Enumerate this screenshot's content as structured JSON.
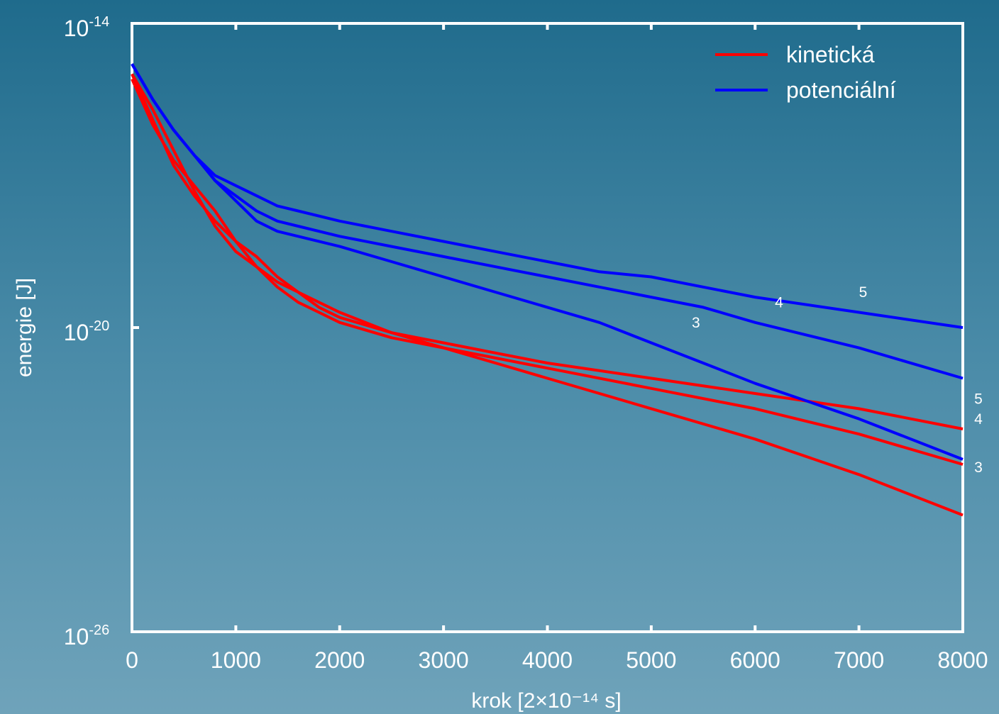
{
  "chart_data": {
    "type": "line",
    "title": "",
    "xlabel": "krok [2×10⁻¹⁴ s]",
    "ylabel": "energie [J]",
    "xlim": [
      0,
      8000
    ],
    "ylim_exp": [
      -26,
      -14
    ],
    "y_scale": "log",
    "x_ticks": [
      0,
      1000,
      2000,
      3000,
      4000,
      5000,
      6000,
      7000,
      8000
    ],
    "x_tick_labels": [
      "0",
      "1000",
      "2000",
      "3000",
      "4000",
      "5000",
      "6000",
      "7000",
      "8000"
    ],
    "y_ticks": [
      {
        "exp": -14,
        "label": "10",
        "sup": "-14"
      },
      {
        "exp": -20,
        "label": "10",
        "sup": "-20"
      },
      {
        "exp": -26,
        "label": "10",
        "sup": "-26"
      }
    ],
    "grid": false,
    "legend_position": "top-right",
    "legend": [
      {
        "name": "kinetická",
        "color": "#ff0000"
      },
      {
        "name": "potenciální",
        "color": "#0000ff"
      }
    ],
    "series": [
      {
        "name": "kinetická",
        "color": "#ff0000",
        "tag": "3",
        "x": [
          0,
          200,
          400,
          600,
          800,
          1000,
          1200,
          1400,
          1600,
          1800,
          2000,
          2500,
          3000,
          3500,
          4000,
          5000,
          6000,
          7000,
          8000
        ],
        "y_exp": [
          -15.0,
          -15.9,
          -16.8,
          -17.4,
          -17.9,
          -18.3,
          -18.6,
          -19.0,
          -19.3,
          -19.6,
          -19.8,
          -20.1,
          -20.4,
          -20.7,
          -21.0,
          -21.6,
          -22.2,
          -22.9,
          -23.7
        ]
      },
      {
        "name": "kinetická",
        "color": "#ff0000",
        "tag": "4",
        "x": [
          0,
          200,
          400,
          600,
          800,
          1000,
          1200,
          1400,
          1600,
          1800,
          2000,
          2500,
          3000,
          3500,
          4000,
          5000,
          6000,
          7000,
          8000
        ],
        "y_exp": [
          -15.1,
          -16.0,
          -16.7,
          -17.2,
          -17.7,
          -18.3,
          -18.8,
          -19.2,
          -19.5,
          -19.7,
          -19.9,
          -20.2,
          -20.4,
          -20.6,
          -20.8,
          -21.2,
          -21.6,
          -22.1,
          -22.7
        ]
      },
      {
        "name": "kinetická",
        "color": "#ff0000",
        "tag": "5",
        "x": [
          0,
          200,
          400,
          600,
          800,
          1000,
          1200,
          1400,
          1600,
          1800,
          2000,
          2500,
          3000,
          3500,
          4000,
          5000,
          6000,
          7000,
          8000
        ],
        "y_exp": [
          -15.0,
          -15.7,
          -16.5,
          -17.3,
          -18.0,
          -18.5,
          -18.8,
          -19.1,
          -19.3,
          -19.5,
          -19.7,
          -20.1,
          -20.3,
          -20.5,
          -20.7,
          -21.0,
          -21.3,
          -21.6,
          -22.0
        ]
      },
      {
        "name": "potenciální",
        "color": "#0000ff",
        "tag": "3",
        "x": [
          0,
          200,
          400,
          600,
          800,
          1000,
          1200,
          1400,
          1600,
          2000,
          2500,
          3000,
          3500,
          4000,
          4500,
          5000,
          5500,
          6000,
          7000,
          8000
        ],
        "y_exp": [
          -14.8,
          -15.5,
          -16.1,
          -16.6,
          -17.1,
          -17.5,
          -17.9,
          -18.1,
          -18.2,
          -18.4,
          -18.7,
          -19.0,
          -19.3,
          -19.6,
          -19.9,
          -20.3,
          -20.7,
          -21.1,
          -21.8,
          -22.6
        ]
      },
      {
        "name": "potenciální",
        "color": "#0000ff",
        "tag": "4",
        "x": [
          0,
          200,
          400,
          600,
          800,
          1000,
          1200,
          1400,
          1600,
          2000,
          2500,
          3000,
          3500,
          4000,
          4500,
          5000,
          5500,
          6000,
          7000,
          8000
        ],
        "y_exp": [
          -14.8,
          -15.5,
          -16.1,
          -16.6,
          -17.1,
          -17.4,
          -17.7,
          -17.9,
          -18.0,
          -18.2,
          -18.4,
          -18.6,
          -18.8,
          -19.0,
          -19.2,
          -19.4,
          -19.6,
          -19.9,
          -20.4,
          -21.0
        ]
      },
      {
        "name": "potenciální",
        "color": "#0000ff",
        "tag": "5",
        "x": [
          0,
          200,
          400,
          600,
          800,
          1000,
          1200,
          1400,
          1600,
          2000,
          2500,
          3000,
          3500,
          4000,
          4500,
          5000,
          5500,
          6000,
          7000,
          8000
        ],
        "y_exp": [
          -14.8,
          -15.5,
          -16.1,
          -16.6,
          -17.0,
          -17.2,
          -17.4,
          -17.6,
          -17.7,
          -17.9,
          -18.1,
          -18.3,
          -18.5,
          -18.7,
          -18.9,
          -19.0,
          -19.2,
          -19.4,
          -19.7,
          -20.0
        ]
      }
    ],
    "annotations": [
      {
        "text": "5",
        "x": 7040,
        "y_exp": -19.4
      },
      {
        "text": "4",
        "x": 6230,
        "y_exp": -19.6
      },
      {
        "text": "3",
        "x": 5430,
        "y_exp": -20.0
      },
      {
        "text": "5",
        "x": 8150,
        "y_exp": -21.5
      },
      {
        "text": "4",
        "x": 8150,
        "y_exp": -21.9
      },
      {
        "text": "3",
        "x": 8150,
        "y_exp": -22.85
      }
    ]
  }
}
